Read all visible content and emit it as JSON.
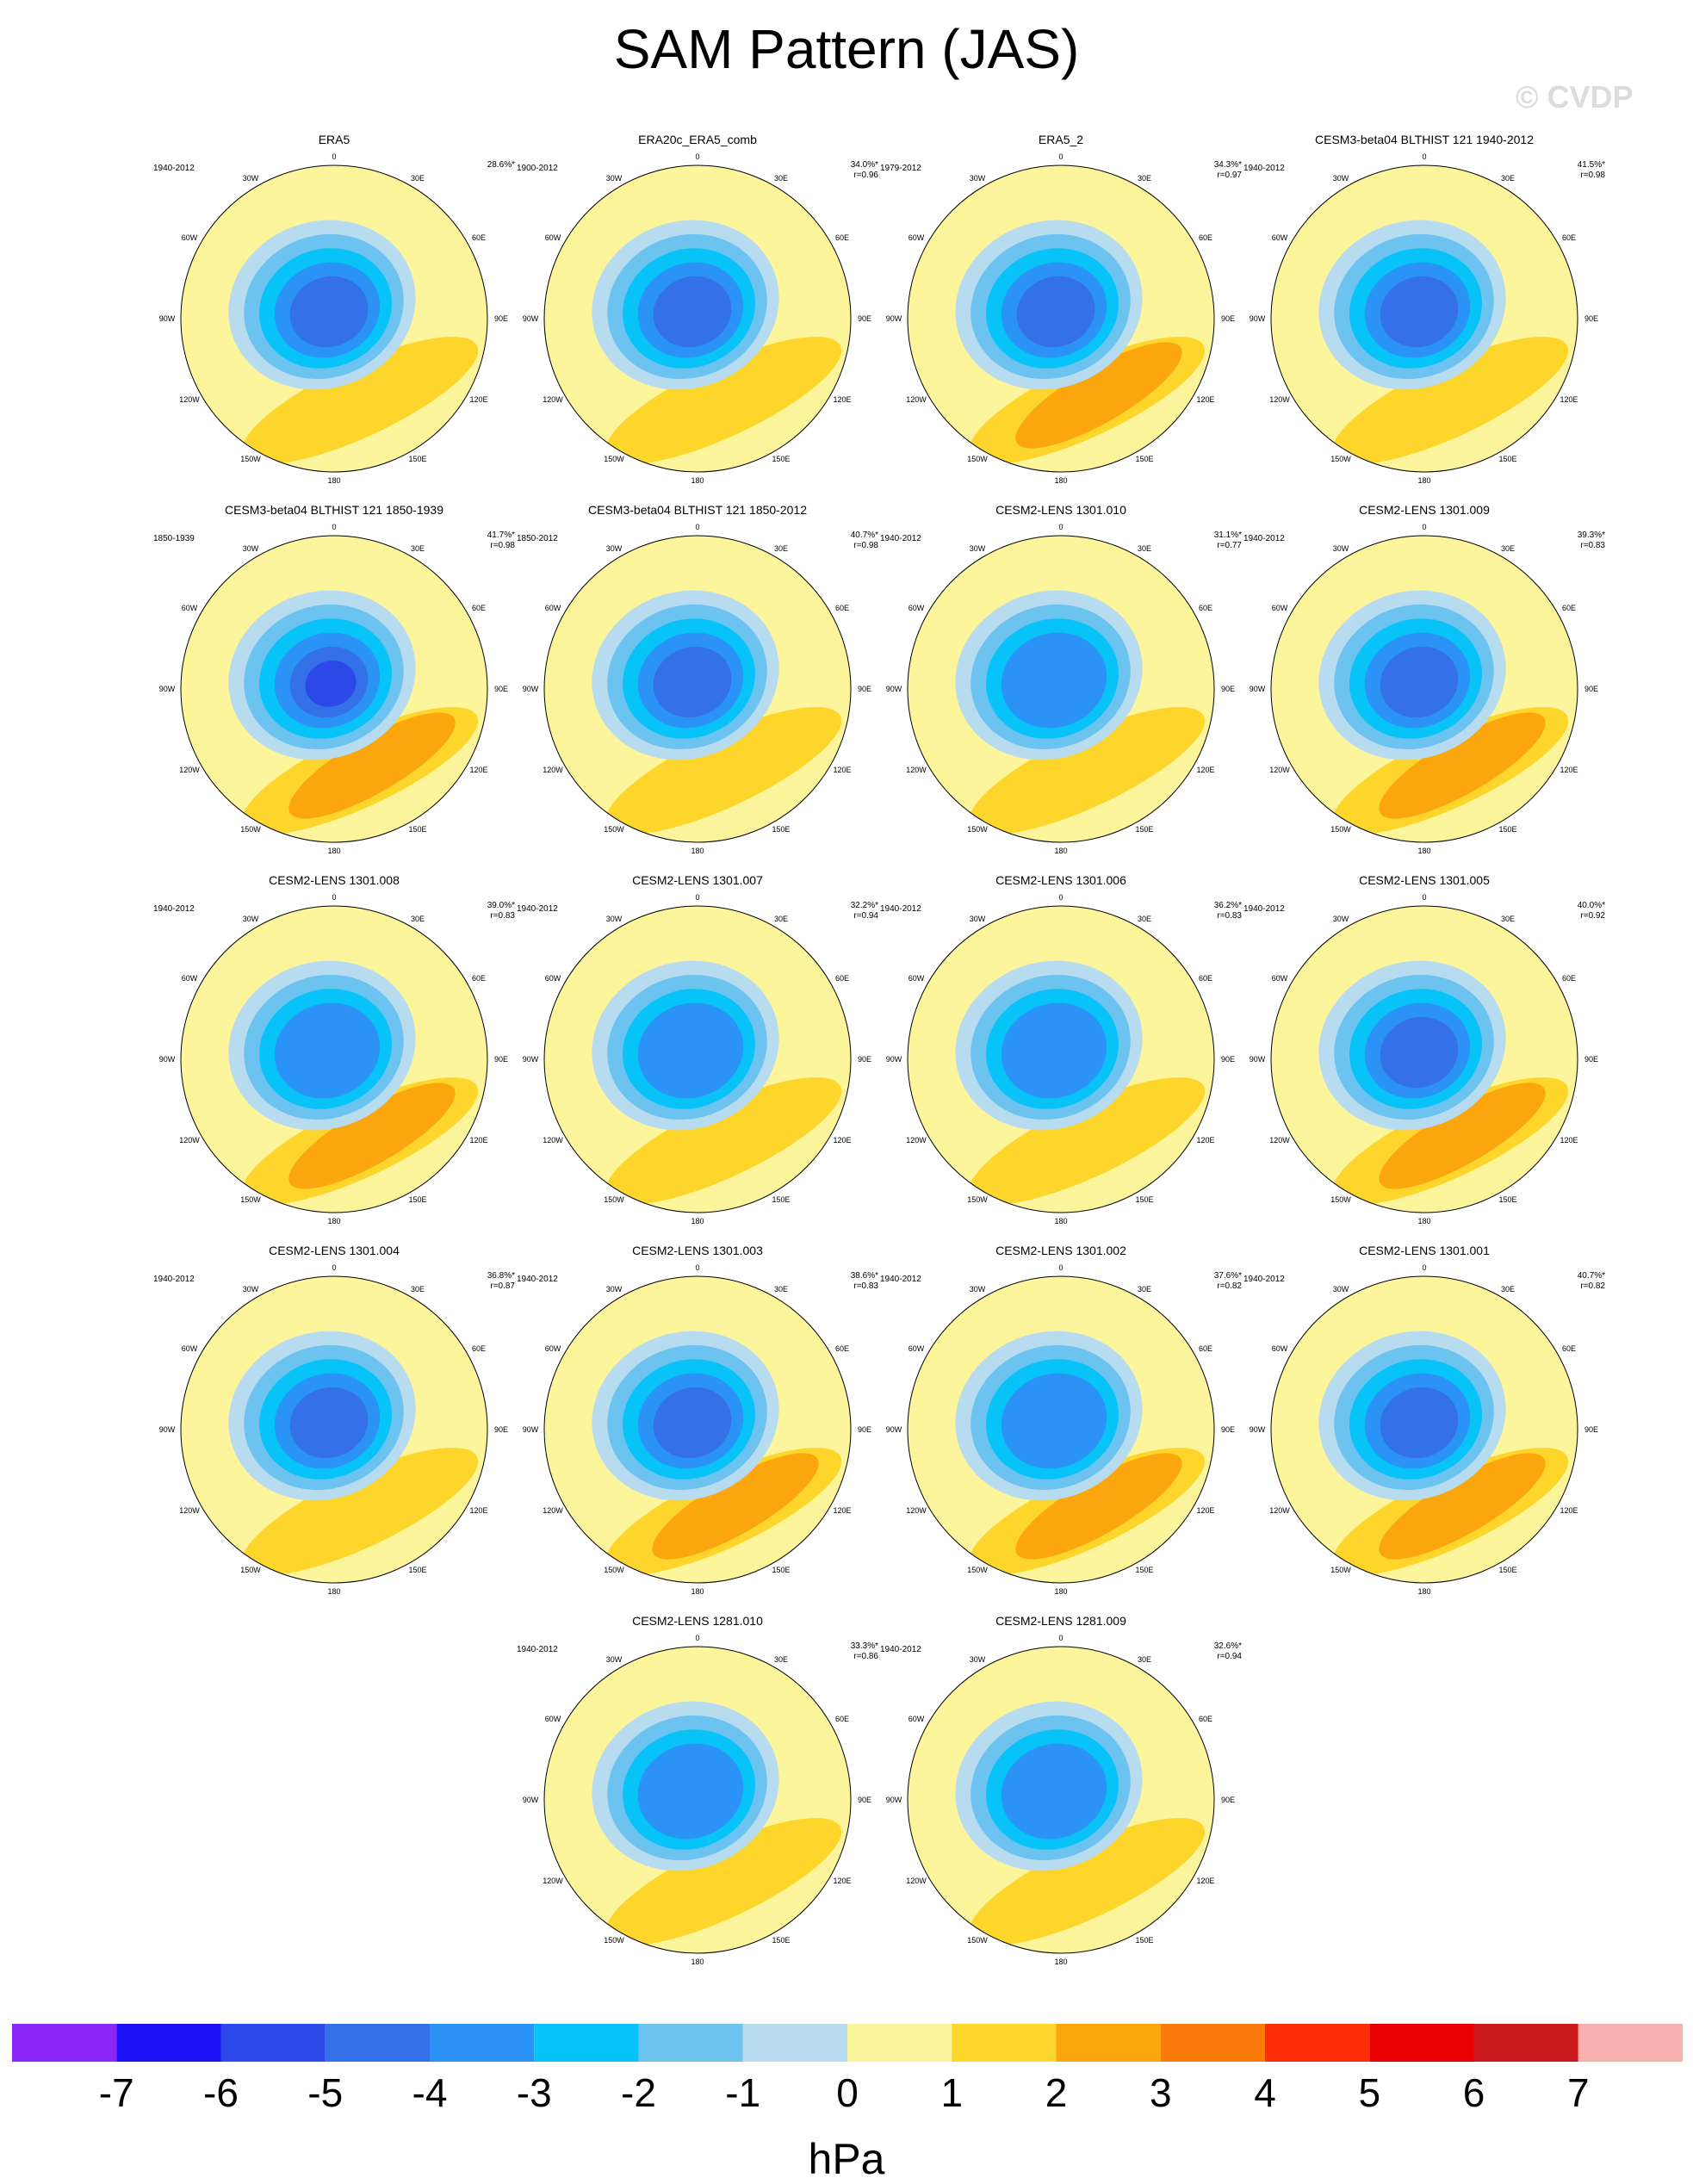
{
  "title": "SAM Pattern (JAS)",
  "watermark": "© CVDP",
  "colorbar": {
    "units": "hPa",
    "ticks": [
      "-7",
      "-6",
      "-5",
      "-4",
      "-3",
      "-2",
      "-1",
      "0",
      "1",
      "2",
      "3",
      "4",
      "5",
      "6",
      "7"
    ],
    "colors": [
      "#8a25f5",
      "#1a12f5",
      "#2c48e8",
      "#3471e8",
      "#2a93f5",
      "#07c3f7",
      "#6cc3ef",
      "#b7dcef",
      "#fdf59b",
      "#fdd52b",
      "#fca60e",
      "#fb7a0c",
      "#fb2d07",
      "#ea0002",
      "#cb1a1c",
      "#fbb0b0"
    ]
  },
  "lon_labels": [
    "0",
    "30E",
    "60E",
    "90E",
    "120E",
    "150E",
    "180",
    "150W",
    "120W",
    "90W",
    "60W",
    "30W"
  ],
  "chart_data": [
    {
      "type": "heatmap",
      "title": "ERA5",
      "period": "1940-2012",
      "pct": "28.6%*",
      "r": "",
      "core": -5,
      "pos_max": 2
    },
    {
      "type": "heatmap",
      "title": "ERA20c_ERA5_comb",
      "period": "1900-2012",
      "pct": "34.0%*",
      "r": "r=0.96",
      "core": -5,
      "pos_max": 2
    },
    {
      "type": "heatmap",
      "title": "ERA5_2",
      "period": "1979-2012",
      "pct": "34.3%*",
      "r": "r=0.97",
      "core": -5,
      "pos_max": 3
    },
    {
      "type": "heatmap",
      "title": "CESM3-beta04 BLTHIST 121 1940-2012",
      "period": "1940-2012",
      "pct": "41.5%*",
      "r": "r=0.98",
      "core": -5,
      "pos_max": 2
    },
    {
      "type": "heatmap",
      "title": "CESM3-beta04 BLTHIST 121 1850-1939",
      "period": "1850-1939",
      "pct": "41.7%*",
      "r": "r=0.98",
      "core": -6,
      "pos_max": 3
    },
    {
      "type": "heatmap",
      "title": "CESM3-beta04 BLTHIST 121 1850-2012",
      "period": "1850-2012",
      "pct": "40.7%*",
      "r": "r=0.98",
      "core": -5,
      "pos_max": 2
    },
    {
      "type": "heatmap",
      "title": "CESM2-LENS 1301.010",
      "period": "1940-2012",
      "pct": "31.1%*",
      "r": "r=0.77",
      "core": -4,
      "pos_max": 2
    },
    {
      "type": "heatmap",
      "title": "CESM2-LENS 1301.009",
      "period": "1940-2012",
      "pct": "39.3%*",
      "r": "r=0.83",
      "core": -5,
      "pos_max": 3
    },
    {
      "type": "heatmap",
      "title": "CESM2-LENS 1301.008",
      "period": "1940-2012",
      "pct": "39.0%*",
      "r": "r=0.83",
      "core": -4,
      "pos_max": 3
    },
    {
      "type": "heatmap",
      "title": "CESM2-LENS 1301.007",
      "period": "1940-2012",
      "pct": "32.2%*",
      "r": "r=0.94",
      "core": -4,
      "pos_max": 2
    },
    {
      "type": "heatmap",
      "title": "CESM2-LENS 1301.006",
      "period": "1940-2012",
      "pct": "36.2%*",
      "r": "r=0.83",
      "core": -4,
      "pos_max": 2
    },
    {
      "type": "heatmap",
      "title": "CESM2-LENS 1301.005",
      "period": "1940-2012",
      "pct": "40.0%*",
      "r": "r=0.92",
      "core": -5,
      "pos_max": 3
    },
    {
      "type": "heatmap",
      "title": "CESM2-LENS 1301.004",
      "period": "1940-2012",
      "pct": "36.8%*",
      "r": "r=0.87",
      "core": -5,
      "pos_max": 2
    },
    {
      "type": "heatmap",
      "title": "CESM2-LENS 1301.003",
      "period": "1940-2012",
      "pct": "38.6%*",
      "r": "r=0.83",
      "core": -5,
      "pos_max": 3
    },
    {
      "type": "heatmap",
      "title": "CESM2-LENS 1301.002",
      "period": "1940-2012",
      "pct": "37.6%*",
      "r": "r=0.82",
      "core": -4,
      "pos_max": 3
    },
    {
      "type": "heatmap",
      "title": "CESM2-LENS 1301.001",
      "period": "1940-2012",
      "pct": "40.7%*",
      "r": "r=0.82",
      "core": -5,
      "pos_max": 3
    },
    {
      "type": "heatmap",
      "title": "CESM2-LENS 1281.010",
      "period": "1940-2012",
      "pct": "33.3%*",
      "r": "r=0.86",
      "core": -4,
      "pos_max": 2
    },
    {
      "type": "heatmap",
      "title": "CESM2-LENS 1281.009",
      "period": "1940-2012",
      "pct": "32.6%*",
      "r": "r=0.94",
      "core": -4,
      "pos_max": 2
    }
  ]
}
